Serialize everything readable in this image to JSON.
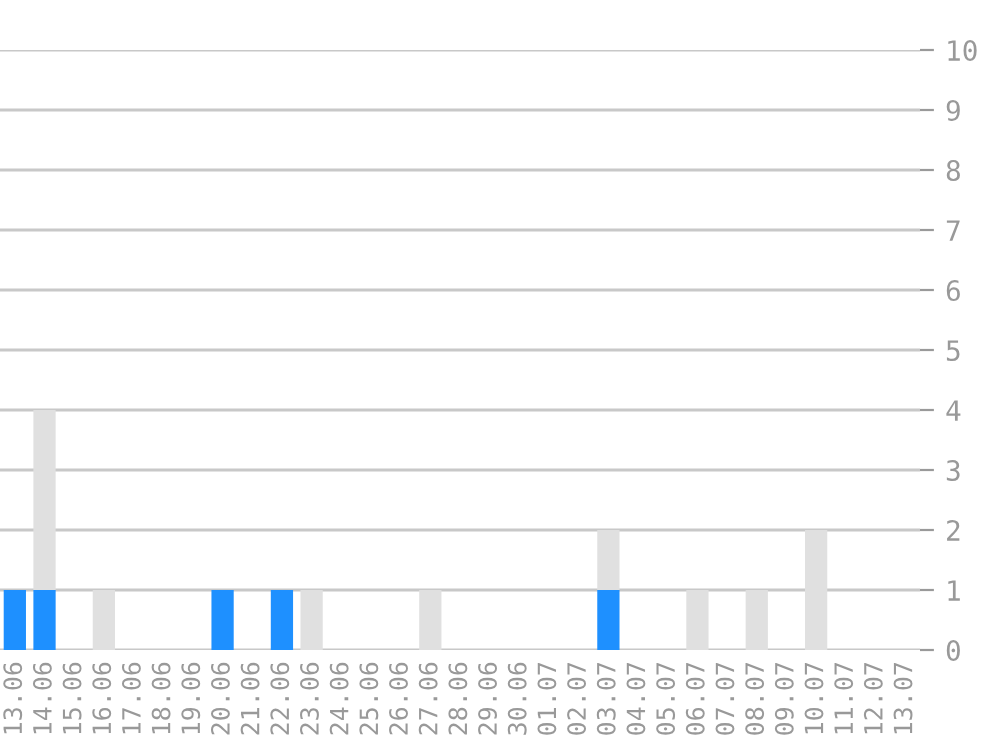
{
  "chart_data": {
    "type": "bar",
    "stacked": true,
    "categories": [
      "13.06",
      "14.06",
      "15.06",
      "16.06",
      "17.06",
      "18.06",
      "19.06",
      "20.06",
      "21.06",
      "22.06",
      "23.06",
      "24.06",
      "25.06",
      "26.06",
      "27.06",
      "28.06",
      "29.06",
      "30.06",
      "01.07",
      "02.07",
      "03.07",
      "04.07",
      "05.07",
      "06.07",
      "07.07",
      "08.07",
      "09.07",
      "10.07",
      "11.07",
      "12.07",
      "13.07"
    ],
    "series": [
      {
        "color": "#1e90ff",
        "values": [
          1,
          1,
          0,
          0,
          0,
          0,
          0,
          1,
          0,
          1,
          0,
          0,
          0,
          0,
          0,
          0,
          0,
          0,
          0,
          0,
          1,
          0,
          0,
          0,
          0,
          0,
          0,
          0,
          0,
          0,
          0
        ]
      },
      {
        "color": "#e0e0e0",
        "values": [
          0,
          3,
          0,
          1,
          0,
          0,
          0,
          0,
          0,
          0,
          1,
          0,
          0,
          0,
          1,
          0,
          0,
          0,
          0,
          0,
          1,
          0,
          0,
          1,
          0,
          1,
          0,
          2,
          0,
          0,
          0
        ]
      }
    ],
    "ylim": [
      0,
      10
    ],
    "yticks": [
      0,
      1,
      2,
      3,
      4,
      5,
      6,
      7,
      8,
      9,
      10
    ],
    "grid": "y",
    "legend": false
  }
}
